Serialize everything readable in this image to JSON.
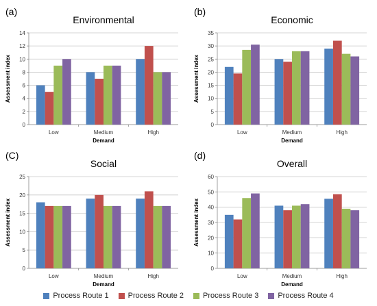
{
  "legend": {
    "items": [
      {
        "label": "Process Route 1",
        "color": "#4f81bd"
      },
      {
        "label": "Process Route 2",
        "color": "#c0504d"
      },
      {
        "label": "Process Route 3",
        "color": "#9bbb59"
      },
      {
        "label": "Process Route 4",
        "color": "#8064a2"
      }
    ]
  },
  "chart_data": [
    {
      "type": "bar",
      "panel_label": "(a)",
      "title": "Environmental",
      "xlabel": "Demand",
      "ylabel": "Assessment index",
      "categories": [
        "Low",
        "Medium",
        "High"
      ],
      "ylim": [
        0,
        14
      ],
      "yticks": [
        0,
        2,
        4,
        6,
        8,
        10,
        12,
        14
      ],
      "grid": true,
      "series": [
        {
          "name": "Process Route 1",
          "values": [
            6,
            8,
            10
          ]
        },
        {
          "name": "Process Route 2",
          "values": [
            5,
            7,
            12
          ]
        },
        {
          "name": "Process Route 3",
          "values": [
            9,
            9,
            8
          ]
        },
        {
          "name": "Process Route 4",
          "values": [
            10,
            9,
            8
          ]
        }
      ]
    },
    {
      "type": "bar",
      "panel_label": "(b)",
      "title": "Economic",
      "xlabel": "Demand",
      "ylabel": "Assessment index",
      "categories": [
        "Low",
        "Medium",
        "High"
      ],
      "ylim": [
        0,
        35
      ],
      "yticks": [
        0,
        5,
        10,
        15,
        20,
        25,
        30,
        35
      ],
      "grid": true,
      "series": [
        {
          "name": "Process Route 1",
          "values": [
            22,
            25,
            29
          ]
        },
        {
          "name": "Process Route 2",
          "values": [
            19.5,
            24,
            32
          ]
        },
        {
          "name": "Process Route 3",
          "values": [
            28.5,
            28,
            27
          ]
        },
        {
          "name": "Process Route 4",
          "values": [
            30.5,
            28,
            26
          ]
        }
      ]
    },
    {
      "type": "bar",
      "panel_label": "(C)",
      "title": "Social",
      "xlabel": "Demand",
      "ylabel": "Assessment index",
      "categories": [
        "Low",
        "Medium",
        "High"
      ],
      "ylim": [
        0,
        25
      ],
      "yticks": [
        0,
        5,
        10,
        15,
        20,
        25
      ],
      "grid": true,
      "series": [
        {
          "name": "Process Route 1",
          "values": [
            18,
            19,
            19
          ]
        },
        {
          "name": "Process Route 2",
          "values": [
            17,
            20,
            21
          ]
        },
        {
          "name": "Process Route 3",
          "values": [
            17,
            17,
            17
          ]
        },
        {
          "name": "Process Route 4",
          "values": [
            17,
            17,
            17
          ]
        }
      ]
    },
    {
      "type": "bar",
      "panel_label": "(d)",
      "title": "Overall",
      "xlabel": "Demand",
      "ylabel": "Assessment index",
      "categories": [
        "Low",
        "Medium",
        "High"
      ],
      "ylim": [
        0,
        60
      ],
      "yticks": [
        0,
        10,
        20,
        30,
        40,
        50,
        60
      ],
      "grid": true,
      "series": [
        {
          "name": "Process Route 1",
          "values": [
            35,
            41,
            45.5
          ]
        },
        {
          "name": "Process Route 2",
          "values": [
            32,
            38,
            48.5
          ]
        },
        {
          "name": "Process Route 3",
          "values": [
            46,
            41,
            39
          ]
        },
        {
          "name": "Process Route 4",
          "values": [
            49,
            42,
            38
          ]
        }
      ]
    }
  ]
}
